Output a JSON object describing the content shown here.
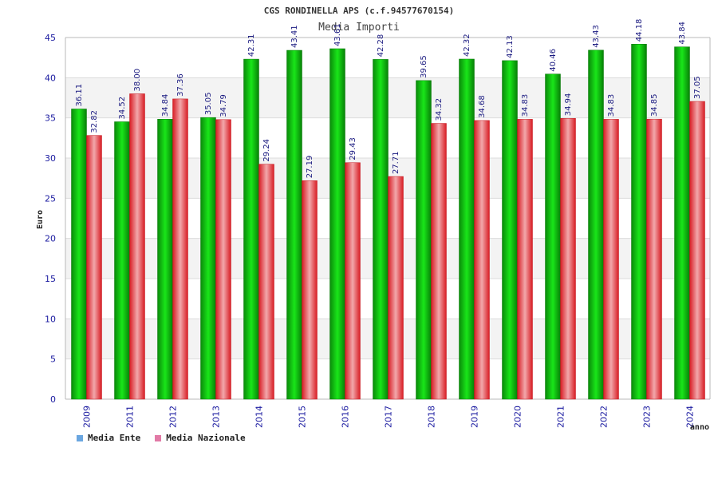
{
  "colors": {
    "ente_legend": "#6aa6e0",
    "nazionale_legend": "#e27aa6",
    "ente_bar": "#11c411",
    "nazionale_bar": "#e8252e",
    "band": "#f3f3f3",
    "grid": "#dcdcdc",
    "axis": "#b8b8b8"
  },
  "chart_data": {
    "type": "bar",
    "title": "CGS RONDINELLA APS (c.f.94577670154)",
    "subtitle": "Media Importi",
    "xlabel": "anno",
    "ylabel": "Euro",
    "ylim": [
      0,
      45
    ],
    "yticks": [
      "0",
      "5",
      "10",
      "15",
      "20",
      "25",
      "30",
      "35",
      "40",
      "45"
    ],
    "categories": [
      "2009",
      "2011",
      "2012",
      "2013",
      "2014",
      "2015",
      "2016",
      "2017",
      "2018",
      "2019",
      "2020",
      "2021",
      "2022",
      "2023",
      "2024"
    ],
    "series": [
      {
        "name": "Media Ente",
        "values": [
          36.11,
          34.52,
          34.84,
          35.05,
          42.31,
          43.41,
          43.61,
          42.28,
          39.65,
          42.32,
          42.13,
          40.46,
          43.43,
          44.18,
          43.84
        ],
        "labels": [
          "36.11",
          "34.52",
          "34.84",
          "35.05",
          "42.31",
          "43.41",
          "43.61",
          "42.28",
          "39.65",
          "42.32",
          "42.13",
          "40.46",
          "43.43",
          "44.18",
          "43.84"
        ]
      },
      {
        "name": "Media Nazionale",
        "values": [
          32.82,
          38.0,
          37.36,
          34.79,
          29.24,
          27.19,
          29.43,
          27.71,
          34.32,
          34.68,
          34.83,
          34.94,
          34.83,
          34.85,
          37.05
        ],
        "labels": [
          "32.82",
          "38.00",
          "37.36",
          "34.79",
          "29.24",
          "27.19",
          "29.43",
          "27.71",
          "34.32",
          "34.68",
          "34.83",
          "34.94",
          "34.83",
          "34.85",
          "37.05"
        ]
      }
    ],
    "legend_position": "bottom-left",
    "grid": true
  }
}
